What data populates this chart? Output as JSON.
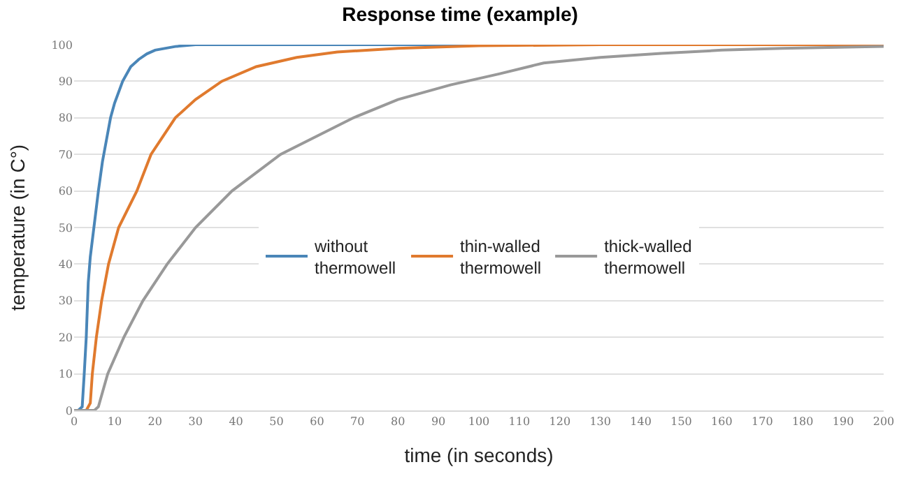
{
  "chart_data": {
    "type": "line",
    "title": "Response time (example)",
    "xlabel": "time (in seconds)",
    "ylabel": "temperature (in C°)",
    "xlim": [
      0,
      200
    ],
    "xticks": [
      0,
      10,
      20,
      30,
      40,
      50,
      60,
      70,
      80,
      90,
      100,
      110,
      120,
      130,
      140,
      150,
      160,
      170,
      180,
      190,
      200
    ],
    "ylim": [
      0,
      100
    ],
    "yticks": [
      0,
      10,
      20,
      30,
      40,
      50,
      60,
      70,
      80,
      90,
      100
    ],
    "grid": "y",
    "legend": "center",
    "marker": "none",
    "line_style": "solid",
    "series": [
      {
        "name": "without\nthermowell",
        "color": "#4a86b8",
        "x": [
          0,
          1,
          2,
          2.5,
          3,
          3.5,
          4,
          5,
          6,
          7,
          8,
          9,
          10,
          12,
          14,
          16,
          18,
          20,
          25,
          30,
          200
        ],
        "values": [
          0,
          0,
          1,
          10,
          20,
          35,
          42,
          51,
          60,
          68,
          74,
          80,
          84,
          90,
          94,
          96,
          97.5,
          98.5,
          99.5,
          100,
          100
        ]
      },
      {
        "name": "thin-walled\nthermowell",
        "color": "#e07a2e",
        "x": [
          0,
          3,
          4,
          4.5,
          5.5,
          6.8,
          8.5,
          11,
          15.5,
          19,
          25,
          30,
          36.5,
          45,
          55,
          65,
          80,
          100,
          130,
          200
        ],
        "values": [
          0,
          0,
          2,
          10,
          20,
          30,
          40,
          50,
          60,
          70,
          80,
          85,
          90,
          94,
          96.5,
          98,
          99,
          99.7,
          100,
          100
        ]
      },
      {
        "name": "thick-walled\nthermowell",
        "color": "#999999",
        "x": [
          0,
          5,
          6,
          8.3,
          12.3,
          17,
          23,
          30,
          39,
          51,
          69,
          80,
          93,
          105,
          116,
          130,
          145,
          160,
          175,
          200
        ],
        "values": [
          0,
          0,
          1,
          10,
          20,
          30,
          40,
          50,
          60,
          70,
          80,
          85,
          89,
          92,
          95,
          96.5,
          97.6,
          98.5,
          99,
          99.5
        ]
      }
    ]
  }
}
